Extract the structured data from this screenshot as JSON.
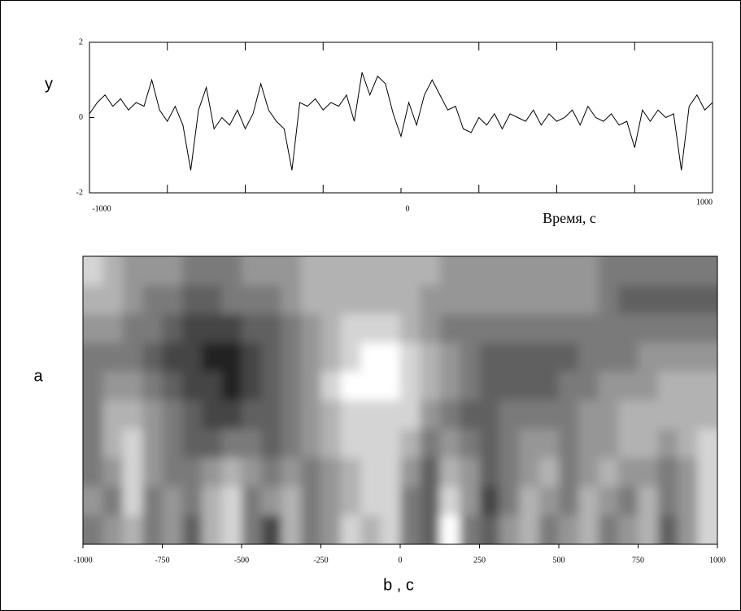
{
  "chart_data": [
    {
      "type": "line",
      "ylabel": "y",
      "xlabel": "Время, с",
      "color": "#000000",
      "xlim": [
        -1000,
        1000
      ],
      "xticks": [
        -1000,
        0,
        1000
      ],
      "xminor": [
        -750,
        -500,
        -250,
        250,
        500,
        750
      ],
      "ylim": [
        -2,
        2
      ],
      "yticks": [
        -2,
        0,
        2
      ],
      "x": [
        -1000,
        -975,
        -950,
        -925,
        -900,
        -875,
        -850,
        -825,
        -800,
        -775,
        -750,
        -725,
        -700,
        -675,
        -650,
        -625,
        -600,
        -575,
        -550,
        -525,
        -500,
        -475,
        -450,
        -425,
        -400,
        -375,
        -350,
        -325,
        -300,
        -275,
        -250,
        -225,
        -200,
        -175,
        -150,
        -125,
        -100,
        -75,
        -50,
        -25,
        0,
        25,
        50,
        75,
        100,
        125,
        150,
        175,
        200,
        225,
        250,
        275,
        300,
        325,
        350,
        375,
        400,
        425,
        450,
        475,
        500,
        525,
        550,
        575,
        600,
        625,
        650,
        675,
        700,
        725,
        750,
        775,
        800,
        825,
        850,
        875,
        900,
        925,
        950,
        975,
        1000
      ],
      "values": [
        0.1,
        0.4,
        0.6,
        0.3,
        0.5,
        0.2,
        0.4,
        0.3,
        1.0,
        0.2,
        -0.1,
        0.3,
        -0.2,
        -1.4,
        0.2,
        0.8,
        -0.3,
        0.0,
        -0.2,
        0.2,
        -0.3,
        0.1,
        0.9,
        0.2,
        -0.1,
        -0.3,
        -1.4,
        0.4,
        0.3,
        0.5,
        0.2,
        0.4,
        0.3,
        0.6,
        -0.1,
        1.2,
        0.6,
        1.1,
        0.9,
        0.1,
        -0.5,
        0.4,
        -0.2,
        0.6,
        1.0,
        0.6,
        0.2,
        0.3,
        -0.3,
        -0.4,
        0.0,
        -0.2,
        0.1,
        -0.3,
        0.1,
        0.0,
        -0.1,
        0.2,
        -0.2,
        0.1,
        -0.1,
        0.0,
        0.2,
        -0.2,
        0.3,
        0.0,
        -0.1,
        0.1,
        -0.2,
        -0.1,
        -0.8,
        0.2,
        -0.1,
        0.2,
        0.0,
        0.1,
        -1.4,
        0.3,
        0.6,
        0.2,
        0.4
      ]
    },
    {
      "type": "heatmap",
      "ylabel": "a",
      "xlabel": "b , c",
      "xlim": [
        -1000,
        1000
      ],
      "xticks": [
        -1000,
        -750,
        -500,
        -250,
        0,
        250,
        500,
        750,
        1000
      ],
      "colormap": [
        "#242424",
        "#444444",
        "#606060",
        "#7a7a7a",
        "#969696",
        "#b2b2b2",
        "#d4d4d4",
        "#ffffff"
      ],
      "z": [
        [
          6,
          5,
          4,
          4,
          4,
          3,
          3,
          3,
          4,
          4,
          4,
          5,
          5,
          5,
          5,
          5,
          5,
          5,
          4,
          4,
          4,
          4,
          4,
          4,
          4,
          4,
          3,
          3,
          3,
          3,
          3,
          3
        ],
        [
          5,
          5,
          4,
          3,
          3,
          2,
          2,
          3,
          3,
          3,
          4,
          5,
          5,
          5,
          5,
          5,
          5,
          4,
          4,
          4,
          4,
          4,
          4,
          4,
          4,
          4,
          3,
          2,
          2,
          2,
          2,
          2
        ],
        [
          4,
          4,
          3,
          3,
          2,
          1,
          1,
          1,
          2,
          2,
          3,
          4,
          5,
          6,
          6,
          6,
          5,
          4,
          3,
          3,
          3,
          3,
          3,
          3,
          3,
          3,
          3,
          3,
          3,
          3,
          3,
          3
        ],
        [
          3,
          3,
          3,
          2,
          1,
          1,
          0,
          0,
          1,
          2,
          3,
          4,
          5,
          6,
          7,
          7,
          6,
          5,
          4,
          3,
          2,
          2,
          2,
          2,
          2,
          3,
          3,
          3,
          4,
          4,
          4,
          4
        ],
        [
          3,
          4,
          4,
          3,
          2,
          1,
          1,
          0,
          1,
          2,
          3,
          4,
          6,
          7,
          7,
          7,
          6,
          5,
          4,
          3,
          2,
          2,
          2,
          2,
          3,
          3,
          4,
          4,
          4,
          5,
          5,
          5
        ],
        [
          3,
          5,
          5,
          4,
          3,
          2,
          1,
          1,
          2,
          2,
          3,
          4,
          5,
          6,
          6,
          6,
          6,
          4,
          3,
          2,
          2,
          3,
          3,
          3,
          3,
          4,
          4,
          5,
          5,
          5,
          5,
          5
        ],
        [
          3,
          5,
          6,
          4,
          3,
          2,
          2,
          3,
          3,
          2,
          3,
          4,
          5,
          6,
          6,
          6,
          5,
          3,
          4,
          3,
          2,
          3,
          4,
          4,
          3,
          4,
          4,
          5,
          5,
          4,
          5,
          6
        ],
        [
          3,
          4,
          6,
          4,
          3,
          3,
          4,
          5,
          4,
          3,
          4,
          3,
          4,
          5,
          6,
          6,
          4,
          2,
          5,
          4,
          2,
          3,
          4,
          5,
          3,
          4,
          5,
          4,
          4,
          3,
          4,
          6
        ],
        [
          4,
          3,
          6,
          3,
          4,
          3,
          5,
          6,
          3,
          4,
          5,
          3,
          4,
          5,
          6,
          6,
          3,
          2,
          6,
          4,
          1,
          3,
          5,
          4,
          3,
          5,
          4,
          3,
          5,
          3,
          4,
          6
        ],
        [
          3,
          4,
          5,
          3,
          4,
          2,
          5,
          6,
          3,
          1,
          5,
          3,
          4,
          6,
          5,
          6,
          3,
          2,
          7,
          3,
          2,
          4,
          5,
          3,
          4,
          5,
          3,
          4,
          5,
          2,
          4,
          6
        ]
      ]
    }
  ]
}
